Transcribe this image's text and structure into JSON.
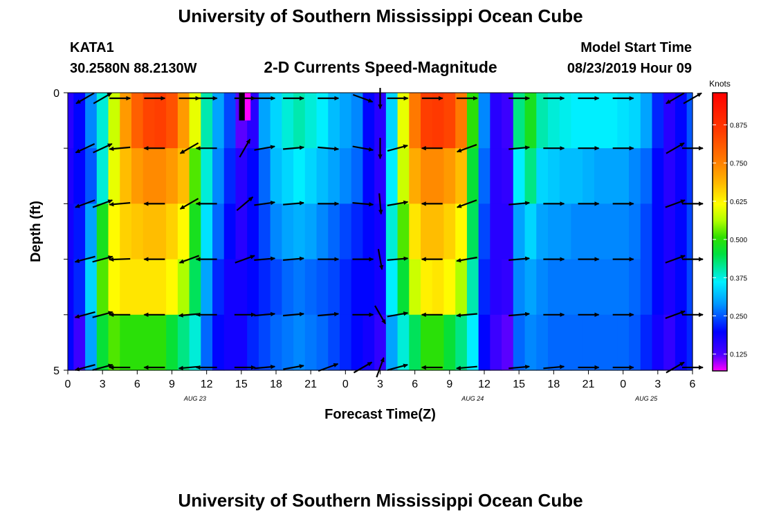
{
  "header": {
    "title": "University of Southern Mississippi Ocean Cube",
    "station_id": "KATA1",
    "station_coords": "30.2580N 88.2130W",
    "subtitle": "2-D Currents Speed-Magnitude",
    "model_label": "Model Start Time",
    "model_time": "08/23/2019 Hour 09"
  },
  "footer": {
    "title": "University of Southern Mississippi Ocean Cube"
  },
  "chart_data": {
    "type": "heatmap",
    "title": "2-D Currents Speed-Magnitude",
    "xlabel": "Forecast Time(Z)",
    "ylabel": "Depth (ft)",
    "x_ticks": [
      "0",
      "3",
      "6",
      "9",
      "12",
      "15",
      "18",
      "21",
      "0",
      "3",
      "6",
      "9",
      "12",
      "15",
      "18",
      "21",
      "0",
      "3",
      "6"
    ],
    "x_range_hours": [
      0,
      54
    ],
    "date_labels": [
      {
        "text": "AUG 23",
        "hour": 11
      },
      {
        "text": "AUG 24",
        "hour": 35
      },
      {
        "text": "AUG 25",
        "hour": 50
      }
    ],
    "y_ticks": [
      "0",
      "5"
    ],
    "y_range": [
      0,
      5
    ],
    "colorbar": {
      "title": "Knots",
      "min": 0.07,
      "max": 0.98,
      "tick_labels": [
        "0.125",
        "0.250",
        "0.375",
        "0.500",
        "0.625",
        "0.750",
        "0.875"
      ],
      "tick_values": [
        0.125,
        0.25,
        0.375,
        0.5,
        0.625,
        0.75,
        0.875
      ]
    },
    "depth_rows": 5,
    "speed_columns": [
      {
        "hour": 0,
        "values": [
          0.16,
          0.17,
          0.18,
          0.19,
          0.2
        ]
      },
      {
        "hour": 1,
        "values": [
          0.2,
          0.2,
          0.21,
          0.22,
          0.14
        ]
      },
      {
        "hour": 2,
        "values": [
          0.28,
          0.25,
          0.3,
          0.34,
          0.3
        ]
      },
      {
        "hour": 3,
        "values": [
          0.38,
          0.38,
          0.48,
          0.52,
          0.46
        ]
      },
      {
        "hour": 4,
        "values": [
          0.58,
          0.6,
          0.62,
          0.62,
          0.52
        ]
      },
      {
        "hour": 5,
        "values": [
          0.72,
          0.68,
          0.66,
          0.64,
          0.5
        ]
      },
      {
        "hour": 6,
        "values": [
          0.8,
          0.72,
          0.67,
          0.64,
          0.5
        ]
      },
      {
        "hour": 7,
        "values": [
          0.84,
          0.74,
          0.68,
          0.64,
          0.5
        ]
      },
      {
        "hour": 8,
        "values": [
          0.85,
          0.74,
          0.68,
          0.64,
          0.5
        ]
      },
      {
        "hour": 9,
        "values": [
          0.82,
          0.72,
          0.66,
          0.62,
          0.46
        ]
      },
      {
        "hour": 10,
        "values": [
          0.72,
          0.68,
          0.62,
          0.56,
          0.42
        ]
      },
      {
        "hour": 11,
        "values": [
          0.6,
          0.52,
          0.48,
          0.44,
          0.38
        ]
      },
      {
        "hour": 12,
        "values": [
          0.4,
          0.38,
          0.35,
          0.3,
          0.26
        ]
      },
      {
        "hour": 13,
        "values": [
          0.3,
          0.28,
          0.26,
          0.22,
          0.2
        ]
      },
      {
        "hour": 14,
        "values": [
          0.24,
          0.22,
          0.2,
          0.18,
          0.18
        ]
      },
      {
        "hour": 15,
        "values": [
          0.12,
          0.16,
          0.16,
          0.18,
          0.18
        ]
      },
      {
        "hour": 16,
        "values": [
          0.16,
          0.2,
          0.2,
          0.2,
          0.22
        ]
      },
      {
        "hour": 17,
        "values": [
          0.3,
          0.26,
          0.24,
          0.22,
          0.24
        ]
      },
      {
        "hour": 18,
        "values": [
          0.34,
          0.32,
          0.28,
          0.24,
          0.26
        ]
      },
      {
        "hour": 19,
        "values": [
          0.38,
          0.34,
          0.3,
          0.26,
          0.27
        ]
      },
      {
        "hour": 20,
        "values": [
          0.4,
          0.36,
          0.31,
          0.27,
          0.28
        ]
      },
      {
        "hour": 21,
        "values": [
          0.38,
          0.34,
          0.3,
          0.26,
          0.27
        ]
      },
      {
        "hour": 22,
        "values": [
          0.36,
          0.32,
          0.28,
          0.25,
          0.26
        ]
      },
      {
        "hour": 23,
        "values": [
          0.32,
          0.3,
          0.26,
          0.24,
          0.24
        ]
      },
      {
        "hour": 24,
        "values": [
          0.3,
          0.28,
          0.24,
          0.22,
          0.22
        ]
      },
      {
        "hour": 25,
        "values": [
          0.28,
          0.26,
          0.22,
          0.2,
          0.2
        ]
      },
      {
        "hour": 26,
        "values": [
          0.2,
          0.2,
          0.2,
          0.2,
          0.18
        ]
      },
      {
        "hour": 27,
        "values": [
          0.16,
          0.16,
          0.18,
          0.18,
          0.15
        ]
      },
      {
        "hour": 28,
        "values": [
          0.34,
          0.36,
          0.38,
          0.36,
          0.3
        ]
      },
      {
        "hour": 29,
        "values": [
          0.6,
          0.58,
          0.52,
          0.46,
          0.38
        ]
      },
      {
        "hour": 30,
        "values": [
          0.76,
          0.7,
          0.64,
          0.58,
          0.44
        ]
      },
      {
        "hour": 31,
        "values": [
          0.85,
          0.74,
          0.68,
          0.63,
          0.5
        ]
      },
      {
        "hour": 32,
        "values": [
          0.86,
          0.74,
          0.68,
          0.64,
          0.5
        ]
      },
      {
        "hour": 33,
        "values": [
          0.84,
          0.72,
          0.66,
          0.62,
          0.46
        ]
      },
      {
        "hour": 34,
        "values": [
          0.76,
          0.68,
          0.62,
          0.56,
          0.42
        ]
      },
      {
        "hour": 35,
        "values": [
          0.5,
          0.46,
          0.44,
          0.4,
          0.36
        ]
      },
      {
        "hour": 36,
        "values": [
          0.28,
          0.26,
          0.24,
          0.22,
          0.2
        ]
      },
      {
        "hour": 37,
        "values": [
          0.16,
          0.16,
          0.16,
          0.16,
          0.14
        ]
      },
      {
        "hour": 38,
        "values": [
          0.14,
          0.15,
          0.16,
          0.15,
          0.12
        ]
      },
      {
        "hour": 39,
        "values": [
          0.42,
          0.36,
          0.3,
          0.28,
          0.26
        ]
      },
      {
        "hour": 40,
        "values": [
          0.48,
          0.42,
          0.34,
          0.3,
          0.28
        ]
      },
      {
        "hour": 41,
        "values": [
          0.4,
          0.34,
          0.3,
          0.28,
          0.27
        ]
      },
      {
        "hour": 42,
        "values": [
          0.38,
          0.33,
          0.29,
          0.27,
          0.26
        ]
      },
      {
        "hour": 43,
        "values": [
          0.37,
          0.32,
          0.29,
          0.27,
          0.26
        ]
      },
      {
        "hour": 44,
        "values": [
          0.36,
          0.32,
          0.28,
          0.27,
          0.26
        ]
      },
      {
        "hour": 45,
        "values": [
          0.36,
          0.31,
          0.28,
          0.27,
          0.26
        ]
      },
      {
        "hour": 46,
        "values": [
          0.36,
          0.3,
          0.28,
          0.27,
          0.26
        ]
      },
      {
        "hour": 47,
        "values": [
          0.36,
          0.3,
          0.28,
          0.27,
          0.26
        ]
      },
      {
        "hour": 48,
        "values": [
          0.35,
          0.3,
          0.28,
          0.27,
          0.26
        ]
      },
      {
        "hour": 49,
        "values": [
          0.34,
          0.28,
          0.27,
          0.26,
          0.25
        ]
      },
      {
        "hour": 50,
        "values": [
          0.3,
          0.26,
          0.24,
          0.24,
          0.22
        ]
      },
      {
        "hour": 51,
        "values": [
          0.22,
          0.2,
          0.2,
          0.2,
          0.18
        ]
      },
      {
        "hour": 52,
        "values": [
          0.16,
          0.16,
          0.17,
          0.17,
          0.15
        ]
      },
      {
        "hour": 53,
        "values": [
          0.2,
          0.19,
          0.2,
          0.2,
          0.19
        ]
      },
      {
        "hour": 54,
        "values": [
          0.25,
          0.23,
          0.24,
          0.24,
          0.22
        ]
      }
    ],
    "special_cells": [
      {
        "hour_start": 14.8,
        "hour_end": 15.3,
        "depth_start": 0,
        "depth_end": 0.5,
        "color": "#000000"
      },
      {
        "hour_start": 15.3,
        "hour_end": 15.8,
        "depth_start": 0,
        "depth_end": 0.5,
        "color": "#ff00ff"
      }
    ],
    "vector_rows": [
      0.1,
      1.0,
      2.0,
      3.0,
      4.0,
      4.95
    ],
    "vectors": [
      {
        "hour": 1.5,
        "angles": [
          150,
          155,
          160,
          165,
          165,
          165
        ]
      },
      {
        "hour": 3,
        "angles": [
          -30,
          -25,
          -20,
          -15,
          -15,
          -15
        ]
      },
      {
        "hour": 4.5,
        "angles": [
          0,
          175,
          175,
          178,
          180,
          180
        ]
      },
      {
        "hour": 7.5,
        "angles": [
          0,
          180,
          180,
          180,
          180,
          180
        ]
      },
      {
        "hour": 10.5,
        "angles": [
          0,
          150,
          150,
          160,
          175,
          175
        ]
      },
      {
        "hour": 12,
        "angles": [
          0,
          180,
          180,
          180,
          180,
          180
        ]
      },
      {
        "hour": 15.3,
        "angles": [
          0,
          -60,
          -40,
          -20,
          0,
          0
        ]
      },
      {
        "hour": 17,
        "angles": [
          0,
          -10,
          -8,
          -5,
          -5,
          -5
        ]
      },
      {
        "hour": 19.5,
        "angles": [
          0,
          -5,
          -5,
          -5,
          -5,
          -10
        ]
      },
      {
        "hour": 22.5,
        "angles": [
          0,
          5,
          0,
          0,
          -5,
          -20
        ]
      },
      {
        "hour": 25.5,
        "angles": [
          20,
          10,
          5,
          0,
          0,
          -30
        ]
      },
      {
        "hour": 27,
        "angles": [
          90,
          90,
          85,
          80,
          60,
          -70
        ]
      },
      {
        "hour": 28.5,
        "angles": [
          0,
          -15,
          -10,
          -5,
          -10,
          -15
        ]
      },
      {
        "hour": 31.5,
        "angles": [
          0,
          180,
          180,
          180,
          180,
          180
        ]
      },
      {
        "hour": 34.5,
        "angles": [
          0,
          160,
          160,
          170,
          175,
          175
        ]
      },
      {
        "hour": 39,
        "angles": [
          0,
          -5,
          -5,
          -5,
          -5,
          -5
        ]
      },
      {
        "hour": 42,
        "angles": [
          0,
          0,
          0,
          0,
          0,
          -5
        ]
      },
      {
        "hour": 45,
        "angles": [
          0,
          0,
          0,
          0,
          0,
          0
        ]
      },
      {
        "hour": 48,
        "angles": [
          0,
          0,
          0,
          0,
          0,
          0
        ]
      },
      {
        "hour": 52.5,
        "angles": [
          150,
          -30,
          -20,
          -20,
          -20,
          -30
        ]
      },
      {
        "hour": 54,
        "angles": [
          -30,
          0,
          0,
          0,
          0,
          0
        ]
      }
    ]
  }
}
